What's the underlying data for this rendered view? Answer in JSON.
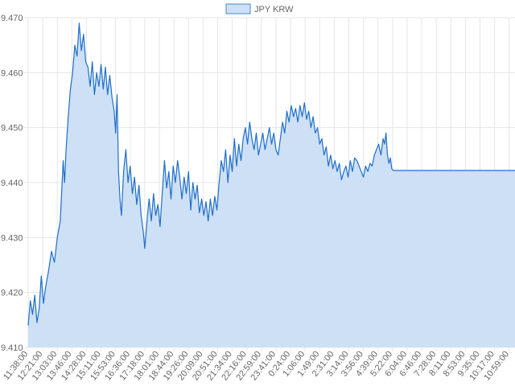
{
  "chart_data": {
    "type": "area",
    "legend": {
      "position": "top",
      "series_name": "JPY KRW"
    },
    "colors": {
      "line": "#1f6fc9",
      "fill": "#cde0f5",
      "legend_swatch_border": "#4a89d6",
      "grid": "#e6e6e6",
      "axis_text": "#666666"
    },
    "grid": true,
    "ylim": [
      9.41,
      9.47
    ],
    "y_ticks": [
      "9.470",
      "9.460",
      "9.450",
      "9.440",
      "9.430",
      "9.420",
      "9.410"
    ],
    "x_ticks": [
      "11:38:00",
      "12:21:00",
      "13:03:00",
      "13:46:00",
      "14:28:00",
      "15:11:00",
      "15:53:00",
      "16:36:00",
      "17:18:00",
      "18:01:00",
      "18:44:00",
      "19:26:00",
      "20:09:00",
      "20:51:00",
      "21:34:00",
      "22:16:00",
      "22:59:00",
      "23:41:00",
      "0:24:00",
      "1:06:00",
      "1:49:00",
      "2:31:00",
      "3:14:00",
      "3:56:00",
      "4:39:00",
      "5:22:00",
      "6:04:00",
      "6:46:00",
      "7:28:00",
      "8:11:00",
      "8:53:00",
      "9:35:00",
      "10:17:00",
      "10:59:00"
    ],
    "series": [
      {
        "name": "JPY KRW",
        "points": [
          [
            0.0,
            9.414
          ],
          [
            0.15,
            9.4185
          ],
          [
            0.3,
            9.416
          ],
          [
            0.45,
            9.4195
          ],
          [
            0.6,
            9.4145
          ],
          [
            0.75,
            9.417
          ],
          [
            0.9,
            9.423
          ],
          [
            1.05,
            9.418
          ],
          [
            1.2,
            9.421
          ],
          [
            1.4,
            9.424
          ],
          [
            1.6,
            9.4275
          ],
          [
            1.8,
            9.4255
          ],
          [
            2.0,
            9.43
          ],
          [
            2.2,
            9.433
          ],
          [
            2.4,
            9.444
          ],
          [
            2.5,
            9.44
          ],
          [
            2.6,
            9.446
          ],
          [
            2.75,
            9.452
          ],
          [
            2.9,
            9.457
          ],
          [
            3.05,
            9.46
          ],
          [
            3.2,
            9.465
          ],
          [
            3.35,
            9.463
          ],
          [
            3.5,
            9.469
          ],
          [
            3.65,
            9.464
          ],
          [
            3.8,
            9.467
          ],
          [
            3.95,
            9.462
          ],
          [
            4.1,
            9.461
          ],
          [
            4.25,
            9.4575
          ],
          [
            4.4,
            9.462
          ],
          [
            4.55,
            9.456
          ],
          [
            4.7,
            9.46
          ],
          [
            4.85,
            9.4575
          ],
          [
            5.0,
            9.4615
          ],
          [
            5.15,
            9.457
          ],
          [
            5.3,
            9.461
          ],
          [
            5.45,
            9.456
          ],
          [
            5.6,
            9.4595
          ],
          [
            5.75,
            9.4555
          ],
          [
            5.9,
            9.453
          ],
          [
            6.0,
            9.449
          ],
          [
            6.1,
            9.456
          ],
          [
            6.2,
            9.442
          ],
          [
            6.3,
            9.437
          ],
          [
            6.4,
            9.434
          ],
          [
            6.55,
            9.442
          ],
          [
            6.7,
            9.446
          ],
          [
            6.85,
            9.44
          ],
          [
            7.0,
            9.443
          ],
          [
            7.15,
            9.438
          ],
          [
            7.3,
            9.441
          ],
          [
            7.45,
            9.436
          ],
          [
            7.6,
            9.4395
          ],
          [
            7.75,
            9.434
          ],
          [
            7.9,
            9.431
          ],
          [
            8.0,
            9.428
          ],
          [
            8.15,
            9.433
          ],
          [
            8.3,
            9.437
          ],
          [
            8.45,
            9.433
          ],
          [
            8.6,
            9.438
          ],
          [
            8.75,
            9.434
          ],
          [
            8.9,
            9.436
          ],
          [
            9.05,
            9.432
          ],
          [
            9.2,
            9.438
          ],
          [
            9.35,
            9.444
          ],
          [
            9.5,
            9.439
          ],
          [
            9.65,
            9.442
          ],
          [
            9.8,
            9.437
          ],
          [
            9.95,
            9.443
          ],
          [
            10.1,
            9.44
          ],
          [
            10.25,
            9.444
          ],
          [
            10.4,
            9.441
          ],
          [
            10.55,
            9.437
          ],
          [
            10.7,
            9.441
          ],
          [
            10.85,
            9.438
          ],
          [
            11.0,
            9.442
          ],
          [
            11.15,
            9.435
          ],
          [
            11.3,
            9.44
          ],
          [
            11.45,
            9.437
          ],
          [
            11.6,
            9.4395
          ],
          [
            11.75,
            9.4345
          ],
          [
            11.9,
            9.437
          ],
          [
            12.05,
            9.434
          ],
          [
            12.2,
            9.4365
          ],
          [
            12.35,
            9.433
          ],
          [
            12.5,
            9.437
          ],
          [
            12.65,
            9.434
          ],
          [
            12.8,
            9.4375
          ],
          [
            12.95,
            9.435
          ],
          [
            13.1,
            9.44
          ],
          [
            13.25,
            9.444
          ],
          [
            13.4,
            9.442
          ],
          [
            13.55,
            9.446
          ],
          [
            13.7,
            9.44
          ],
          [
            13.85,
            9.445
          ],
          [
            14.0,
            9.442
          ],
          [
            14.15,
            9.448
          ],
          [
            14.3,
            9.443
          ],
          [
            14.45,
            9.447
          ],
          [
            14.6,
            9.444
          ],
          [
            14.75,
            9.448
          ],
          [
            14.9,
            9.45
          ],
          [
            15.05,
            9.447
          ],
          [
            15.2,
            9.451
          ],
          [
            15.35,
            9.448
          ],
          [
            15.5,
            9.446
          ],
          [
            15.65,
            9.449
          ],
          [
            15.8,
            9.445
          ],
          [
            15.95,
            9.447
          ],
          [
            16.1,
            9.449
          ],
          [
            16.25,
            9.446
          ],
          [
            16.4,
            9.448
          ],
          [
            16.55,
            9.45
          ],
          [
            16.7,
            9.447
          ],
          [
            16.85,
            9.449
          ],
          [
            17.0,
            9.446
          ],
          [
            17.15,
            9.445
          ],
          [
            17.3,
            9.448
          ],
          [
            17.45,
            9.451
          ],
          [
            17.6,
            9.449
          ],
          [
            17.75,
            9.453
          ],
          [
            17.9,
            9.451
          ],
          [
            18.05,
            9.454
          ],
          [
            18.2,
            9.452
          ],
          [
            18.35,
            9.4535
          ],
          [
            18.5,
            9.451
          ],
          [
            18.65,
            9.454
          ],
          [
            18.8,
            9.452
          ],
          [
            18.95,
            9.4545
          ],
          [
            19.1,
            9.4515
          ],
          [
            19.25,
            9.453
          ],
          [
            19.4,
            9.45
          ],
          [
            19.55,
            9.452
          ],
          [
            19.7,
            9.449
          ],
          [
            19.85,
            9.45
          ],
          [
            20.0,
            9.447
          ],
          [
            20.15,
            9.448
          ],
          [
            20.3,
            9.445
          ],
          [
            20.45,
            9.4465
          ],
          [
            20.6,
            9.443
          ],
          [
            20.75,
            9.445
          ],
          [
            20.9,
            9.4425
          ],
          [
            21.05,
            9.444
          ],
          [
            21.2,
            9.442
          ],
          [
            21.35,
            9.4435
          ],
          [
            21.5,
            9.4405
          ],
          [
            21.65,
            9.442
          ],
          [
            21.8,
            9.443
          ],
          [
            21.95,
            9.441
          ],
          [
            22.1,
            9.444
          ],
          [
            22.25,
            9.442
          ],
          [
            22.4,
            9.4445
          ],
          [
            22.55,
            9.444
          ],
          [
            22.7,
            9.443
          ],
          [
            22.85,
            9.442
          ],
          [
            23.0,
            9.441
          ],
          [
            23.15,
            9.443
          ],
          [
            23.3,
            9.442
          ],
          [
            23.45,
            9.4435
          ],
          [
            23.6,
            9.443
          ],
          [
            23.75,
            9.445
          ],
          [
            23.9,
            9.446
          ],
          [
            24.05,
            9.447
          ],
          [
            24.2,
            9.445
          ],
          [
            24.35,
            9.448
          ],
          [
            24.45,
            9.447
          ],
          [
            24.55,
            9.449
          ],
          [
            24.65,
            9.445
          ],
          [
            24.75,
            9.4435
          ],
          [
            24.85,
            9.4445
          ],
          [
            24.95,
            9.4425
          ],
          [
            25.05,
            9.4422
          ],
          [
            34.0,
            9.4422
          ]
        ]
      }
    ]
  }
}
